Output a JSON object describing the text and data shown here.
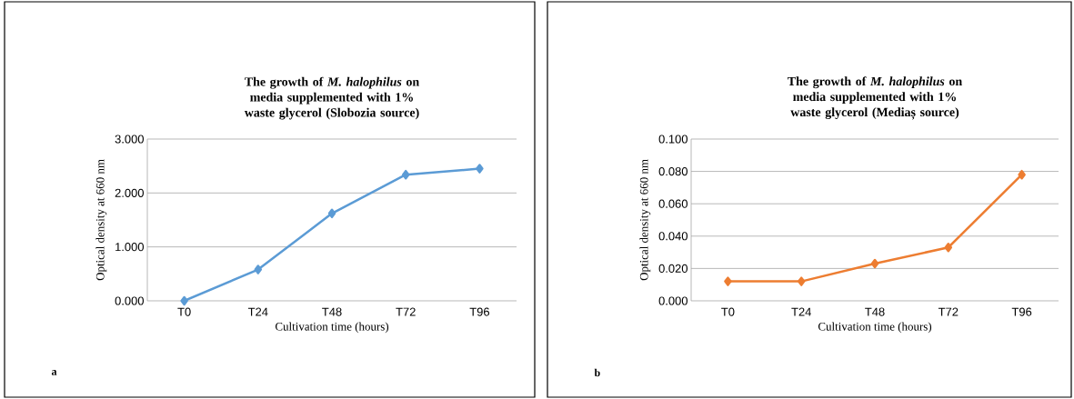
{
  "chart_data": [
    {
      "type": "line",
      "title": "The growth of *M. halophilus* on media supplemented with 1% waste glycerol (Slobozia source)",
      "xlabel": "Cultivation time (hours)",
      "ylabel": "Optical density at 660 nm",
      "categories": [
        "T0",
        "T24",
        "T48",
        "T72",
        "T96"
      ],
      "series": [
        {
          "color": "#5b9bd5",
          "values": [
            0.0,
            0.58,
            1.62,
            2.34,
            2.45
          ]
        }
      ],
      "ylim": [
        0,
        3
      ],
      "yticks": [
        {
          "value": 0,
          "label": "0.000"
        },
        {
          "value": 1,
          "label": "1.000"
        },
        {
          "value": 2,
          "label": "2.000"
        },
        {
          "value": 3,
          "label": "3.000"
        }
      ],
      "grid": "y",
      "marker": "diamond",
      "line_style": "solid",
      "annotations": [
        "a"
      ]
    },
    {
      "type": "line",
      "title": "The growth of *M. halophilus* on media supplemented with 1% waste glycerol (Mediaș source)",
      "xlabel": "Cultivation time (hours)",
      "ylabel": "Optical density at 660 nm",
      "categories": [
        "T0",
        "T24",
        "T48",
        "T72",
        "T96"
      ],
      "series": [
        {
          "color": "#ed7d31",
          "values": [
            0.012,
            0.012,
            0.023,
            0.033,
            0.078
          ]
        }
      ],
      "ylim": [
        0,
        0.1
      ],
      "yticks": [
        {
          "value": 0,
          "label": "0.000"
        },
        {
          "value": 0.02,
          "label": "0.020"
        },
        {
          "value": 0.04,
          "label": "0.040"
        },
        {
          "value": 0.06,
          "label": "0.060"
        },
        {
          "value": 0.08,
          "label": "0.080"
        },
        {
          "value": 0.1,
          "label": "0.100"
        }
      ],
      "grid": "y",
      "marker": "diamond",
      "line_style": "solid",
      "annotations": [
        "b"
      ]
    }
  ]
}
